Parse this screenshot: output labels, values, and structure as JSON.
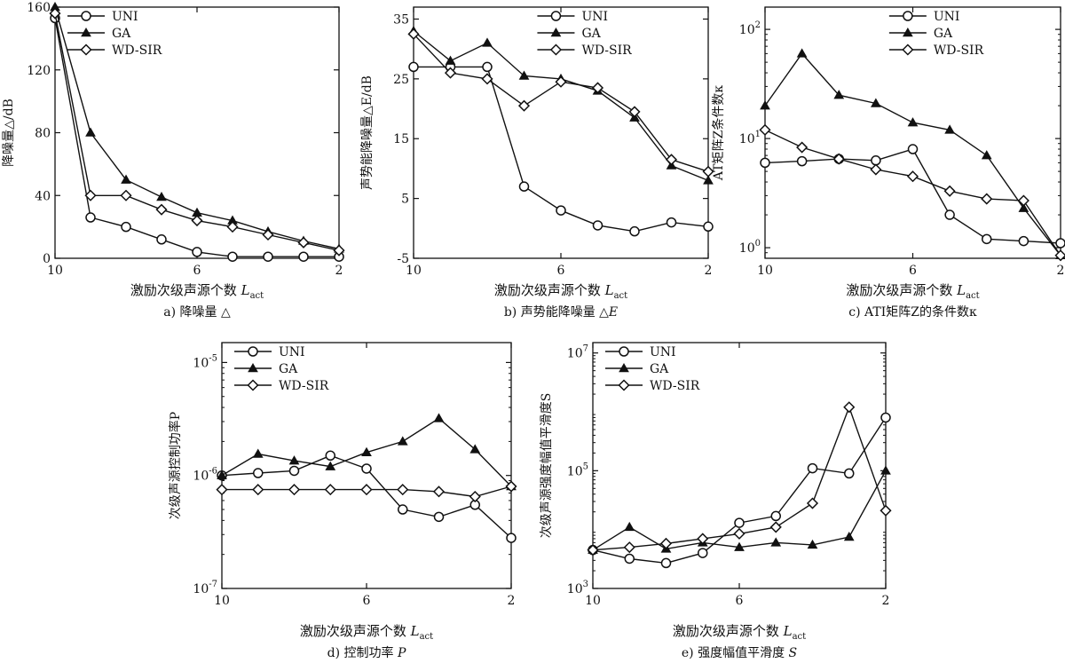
{
  "chart_data": [
    {
      "id": "a",
      "type": "line",
      "yscale": "linear",
      "x": [
        10,
        9,
        8,
        7,
        6,
        5,
        4,
        3,
        2
      ],
      "xlim": [
        10,
        2
      ],
      "xticks": [
        10,
        6,
        2
      ],
      "ylim": [
        0,
        160
      ],
      "yticks": [
        0,
        40,
        80,
        120,
        160
      ],
      "xlabel": "激励次级声源个数",
      "xlabel_sym": "L",
      "xlabel_sub": "act",
      "ylabel": "降噪量△/dB",
      "caption_letter": "a)",
      "caption": "降噪量",
      "caption_sym": "△",
      "legend": [
        "UNI",
        "GA",
        "WD-SIR"
      ],
      "legend_position": "top-left",
      "series": [
        {
          "name": "UNI",
          "marker": "circle",
          "values": [
            153,
            26,
            20,
            12,
            4,
            1,
            1,
            1,
            1
          ]
        },
        {
          "name": "GA",
          "marker": "triangle",
          "values": [
            160,
            80,
            50,
            39,
            29,
            24,
            17,
            11,
            6
          ]
        },
        {
          "name": "WD-SIR",
          "marker": "diamond",
          "values": [
            156,
            40,
            40,
            31,
            24,
            20,
            15,
            10,
            5
          ]
        }
      ]
    },
    {
      "id": "b",
      "type": "line",
      "yscale": "linear",
      "x": [
        10,
        9,
        8,
        7,
        6,
        5,
        4,
        3,
        2
      ],
      "xlim": [
        10,
        2
      ],
      "xticks": [
        10,
        6,
        2
      ],
      "ylim": [
        -5,
        37
      ],
      "yticks": [
        -5,
        5,
        15,
        25,
        35
      ],
      "xlabel": "激励次级声源个数",
      "xlabel_sym": "L",
      "xlabel_sub": "act",
      "ylabel": "声势能降噪量△E/dB",
      "caption_letter": "b)",
      "caption": "声势能降噪量",
      "caption_sym": "△E",
      "legend": [
        "UNI",
        "GA",
        "WD-SIR"
      ],
      "legend_position": "top-right",
      "series": [
        {
          "name": "UNI",
          "marker": "circle",
          "values": [
            27,
            27,
            27,
            7,
            3,
            0.5,
            -0.5,
            1,
            0.3
          ]
        },
        {
          "name": "GA",
          "marker": "triangle",
          "values": [
            33,
            28,
            31,
            25.5,
            25,
            23,
            18.5,
            10.5,
            8
          ]
        },
        {
          "name": "WD-SIR",
          "marker": "diamond",
          "values": [
            32.5,
            26,
            25,
            20.5,
            24.5,
            23.5,
            19.5,
            11.5,
            9.5
          ]
        }
      ]
    },
    {
      "id": "c",
      "type": "line",
      "yscale": "log",
      "x": [
        10,
        9,
        8,
        7,
        6,
        5,
        4,
        3,
        2
      ],
      "xlim": [
        10,
        2
      ],
      "xticks": [
        10,
        6,
        2
      ],
      "ylim": [
        0.8,
        160
      ],
      "yticks": [
        1,
        10,
        100
      ],
      "ytick_labels": [
        {
          "base": "10",
          "exp": "0"
        },
        {
          "base": "10",
          "exp": "1"
        },
        {
          "base": "10",
          "exp": "2"
        }
      ],
      "xlabel": "激励次级声源个数",
      "xlabel_sym": "L",
      "xlabel_sub": "act",
      "ylabel": "AT矩阵Z条件数κ",
      "caption_letter": "c)",
      "caption": "ATI矩阵Z的条件数κ",
      "legend": [
        "UNI",
        "GA",
        "WD-SIR"
      ],
      "legend_position": "top-right",
      "series": [
        {
          "name": "UNI",
          "marker": "circle",
          "values": [
            6,
            6.2,
            6.5,
            6.3,
            8,
            2,
            1.2,
            1.15,
            1.1
          ]
        },
        {
          "name": "GA",
          "marker": "triangle",
          "values": [
            20,
            60,
            25,
            21,
            14,
            12,
            7,
            2.3,
            0.85
          ]
        },
        {
          "name": "WD-SIR",
          "marker": "diamond",
          "values": [
            12,
            8.3,
            6.5,
            5.2,
            4.5,
            3.3,
            2.8,
            2.7,
            0.85
          ]
        }
      ]
    },
    {
      "id": "d",
      "type": "line",
      "yscale": "log",
      "x": [
        10,
        9,
        8,
        7,
        6,
        5,
        4,
        3,
        2
      ],
      "xlim": [
        10,
        2
      ],
      "xticks": [
        10,
        6,
        2
      ],
      "ylim": [
        1e-07,
        1.5e-05
      ],
      "yticks": [
        1e-07,
        1e-06,
        1e-05
      ],
      "ytick_labels": [
        {
          "base": "10",
          "exp": "-7"
        },
        {
          "base": "10",
          "exp": "-6"
        },
        {
          "base": "10",
          "exp": "-5"
        }
      ],
      "xlabel": "激励次级声源个数",
      "xlabel_sym": "L",
      "xlabel_sub": "act",
      "ylabel": "次级声源控制功率P",
      "caption_letter": "d)",
      "caption": "控制功率",
      "caption_sym": "P",
      "legend": [
        "UNI",
        "GA",
        "WD-SIR"
      ],
      "legend_position": "top-left",
      "series": [
        {
          "name": "UNI",
          "marker": "circle",
          "values": [
            1e-06,
            1.05e-06,
            1.1e-06,
            1.5e-06,
            1.15e-06,
            5e-07,
            4.3e-07,
            5.5e-07,
            2.8e-07
          ]
        },
        {
          "name": "GA",
          "marker": "triangle",
          "values": [
            1e-06,
            1.55e-06,
            1.35e-06,
            1.2e-06,
            1.6e-06,
            2e-06,
            3.2e-06,
            1.7e-06,
            8e-07
          ]
        },
        {
          "name": "WD-SIR",
          "marker": "diamond",
          "values": [
            7.5e-07,
            7.5e-07,
            7.5e-07,
            7.5e-07,
            7.5e-07,
            7.5e-07,
            7.2e-07,
            6.5e-07,
            8e-07
          ]
        }
      ]
    },
    {
      "id": "e",
      "type": "line",
      "yscale": "log",
      "x": [
        10,
        9,
        8,
        7,
        6,
        5,
        4,
        3,
        2
      ],
      "xlim": [
        10,
        2
      ],
      "xticks": [
        10,
        6,
        2
      ],
      "ylim": [
        1000.0,
        15000000.0
      ],
      "yticks": [
        1000.0,
        100000.0,
        10000000.0
      ],
      "ytick_labels": [
        {
          "base": "10",
          "exp": "3"
        },
        {
          "base": "10",
          "exp": "5"
        },
        {
          "base": "10",
          "exp": "7"
        }
      ],
      "xlabel": "激励次级声源个数",
      "xlabel_sym": "L",
      "xlabel_sub": "act",
      "ylabel": "次级声源强度幅值平滑度S",
      "caption_letter": "e)",
      "caption": "强度幅值平滑度",
      "caption_sym": "S",
      "legend": [
        "UNI",
        "GA",
        "WD-SIR"
      ],
      "legend_position": "top-left",
      "series": [
        {
          "name": "UNI",
          "marker": "circle",
          "values": [
            4500,
            3200,
            2700,
            4000,
            13000,
            17000,
            110000,
            90000,
            800000
          ]
        },
        {
          "name": "GA",
          "marker": "triangle",
          "values": [
            4500,
            11000,
            4700,
            6000,
            5000,
            6000,
            5500,
            7500,
            100000
          ]
        },
        {
          "name": "WD-SIR",
          "marker": "diamond",
          "values": [
            4500,
            5000,
            5800,
            7000,
            8500,
            11000,
            28000,
            1200000,
            21000
          ]
        }
      ]
    }
  ]
}
